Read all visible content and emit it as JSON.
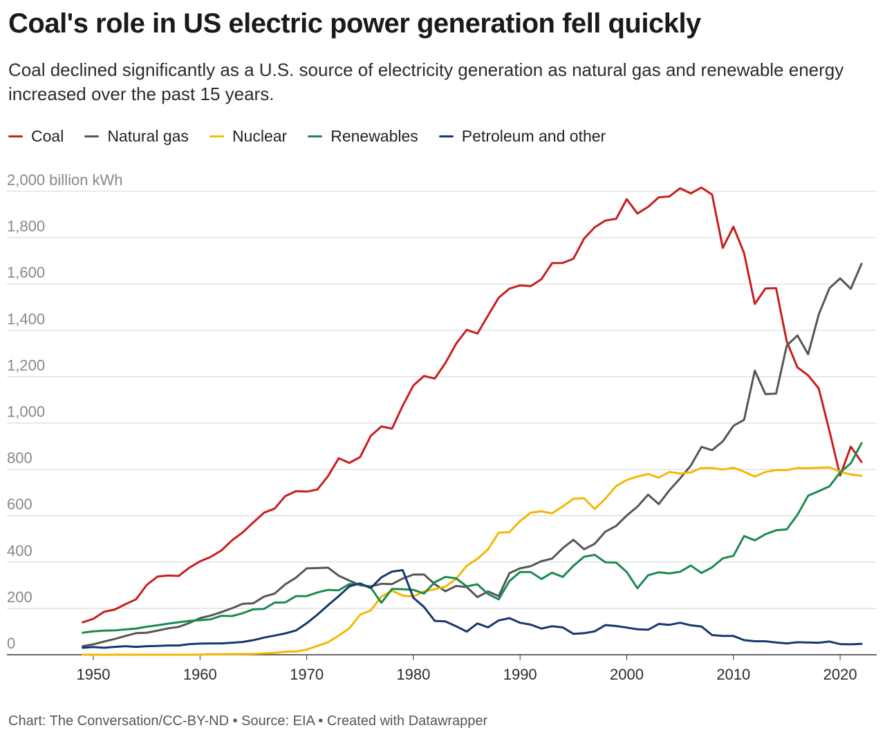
{
  "title": "Coal's role in US electric power generation fell quickly",
  "subtitle": "Coal declined significantly as a U.S. source of electricity generation as natural gas and renewable energy increased over the past 15 years.",
  "footer": "Chart: The Conversation/CC-BY-ND • Source: EIA • Created with Datawrapper",
  "chart_data": {
    "type": "line",
    "title": "Coal's role in US electric power generation fell quickly",
    "ylabel": "2,000 billion kWh",
    "ylim": [
      0,
      2000
    ],
    "y_ticks": [
      0,
      200,
      400,
      600,
      800,
      1000,
      1200,
      1400,
      1600,
      1800,
      2000
    ],
    "y_tick_labels": [
      "0",
      "200",
      "400",
      "600",
      "800",
      "1,000",
      "1,200",
      "1,400",
      "1,600",
      "1,800",
      "2,000 billion kWh"
    ],
    "xlim": [
      1949,
      2022
    ],
    "x_ticks": [
      1950,
      1960,
      1970,
      1980,
      1990,
      2000,
      2010,
      2020
    ],
    "x_tick_labels": [
      "1950",
      "1960",
      "1970",
      "1980",
      "1990",
      "2000",
      "2010",
      "2020"
    ],
    "grid": true,
    "legend_position": "top-left",
    "x": [
      1949,
      1950,
      1951,
      1952,
      1953,
      1954,
      1955,
      1956,
      1957,
      1958,
      1959,
      1960,
      1961,
      1962,
      1963,
      1964,
      1965,
      1966,
      1967,
      1968,
      1969,
      1970,
      1971,
      1972,
      1973,
      1974,
      1975,
      1976,
      1977,
      1978,
      1979,
      1980,
      1981,
      1982,
      1983,
      1984,
      1985,
      1986,
      1987,
      1988,
      1989,
      1990,
      1991,
      1992,
      1993,
      1994,
      1995,
      1996,
      1997,
      1998,
      1999,
      2000,
      2001,
      2002,
      2003,
      2004,
      2005,
      2006,
      2007,
      2008,
      2009,
      2010,
      2011,
      2012,
      2013,
      2014,
      2015,
      2016,
      2017,
      2018,
      2019,
      2020,
      2021,
      2022
    ],
    "series": [
      {
        "name": "Coal",
        "color": "#c71e1d",
        "values": [
          140,
          155,
          185,
          195,
          218,
          239,
          301,
          337,
          342,
          340,
          376,
          403,
          422,
          450,
          494,
          528,
          571,
          613,
          631,
          685,
          706,
          704,
          713,
          771,
          848,
          828,
          853,
          944,
          985,
          976,
          1075,
          1162,
          1203,
          1192,
          1259,
          1342,
          1402,
          1386,
          1464,
          1541,
          1580,
          1594,
          1591,
          1621,
          1690,
          1691,
          1709,
          1796,
          1845,
          1874,
          1881,
          1966,
          1904,
          1933,
          1974,
          1978,
          2013,
          1991,
          2016,
          1986,
          1756,
          1847,
          1733,
          1514,
          1581,
          1582,
          1352,
          1240,
          1206,
          1149,
          965,
          773,
          898,
          832
        ]
      },
      {
        "name": "Natural gas",
        "color": "#555555",
        "values": [
          37,
          45,
          57,
          68,
          81,
          93,
          95,
          104,
          114,
          120,
          137,
          158,
          169,
          184,
          201,
          220,
          222,
          251,
          264,
          304,
          333,
          373,
          374,
          376,
          341,
          320,
          300,
          295,
          306,
          305,
          329,
          346,
          346,
          305,
          274,
          297,
          292,
          249,
          273,
          253,
          352,
          373,
          382,
          404,
          415,
          460,
          496,
          455,
          479,
          531,
          556,
          601,
          639,
          691,
          650,
          710,
          761,
          816,
          897,
          883,
          921,
          988,
          1014,
          1226,
          1125,
          1127,
          1334,
          1378,
          1297,
          1469,
          1582,
          1624,
          1579,
          1687
        ]
      },
      {
        "name": "Nuclear",
        "color": "#f5b700",
        "values": [
          0,
          0,
          0,
          0,
          0,
          0,
          0,
          0,
          0,
          0,
          0,
          1,
          2,
          2,
          3,
          3,
          4,
          6,
          8,
          13,
          14,
          22,
          38,
          54,
          83,
          114,
          173,
          191,
          251,
          276,
          255,
          251,
          273,
          283,
          294,
          328,
          384,
          414,
          455,
          527,
          529,
          577,
          613,
          619,
          610,
          640,
          673,
          675,
          629,
          674,
          728,
          754,
          769,
          780,
          764,
          789,
          782,
          787,
          806,
          806,
          799,
          807,
          790,
          769,
          789,
          797,
          797,
          806,
          805,
          807,
          809,
          790,
          778,
          772
        ]
      },
      {
        "name": "Renewables",
        "color": "#1a8a4f",
        "values": [
          95,
          101,
          104,
          105,
          109,
          113,
          121,
          127,
          134,
          140,
          146,
          149,
          153,
          168,
          167,
          179,
          196,
          198,
          225,
          226,
          253,
          253,
          269,
          280,
          278,
          305,
          304,
          290,
          224,
          284,
          283,
          280,
          264,
          313,
          336,
          330,
          295,
          304,
          262,
          239,
          318,
          357,
          357,
          327,
          354,
          336,
          384,
          423,
          431,
          399,
          398,
          357,
          287,
          343,
          356,
          351,
          358,
          385,
          353,
          377,
          416,
          427,
          512,
          494,
          520,
          537,
          541,
          604,
          686,
          706,
          727,
          787,
          826,
          913
        ]
      },
      {
        "name": "Petroleum and other",
        "color": "#15376e",
        "values": [
          30,
          33,
          30,
          34,
          37,
          34,
          37,
          38,
          40,
          40,
          46,
          48,
          49,
          49,
          52,
          55,
          63,
          74,
          83,
          92,
          105,
          136,
          173,
          214,
          253,
          295,
          308,
          288,
          334,
          359,
          365,
          246,
          206,
          146,
          144,
          123,
          100,
          135,
          118,
          148,
          158,
          138,
          130,
          113,
          123,
          118,
          90,
          93,
          101,
          128,
          124,
          117,
          110,
          108,
          133,
          129,
          138,
          127,
          122,
          85,
          81,
          81,
          63,
          58,
          58,
          53,
          49,
          54,
          53,
          52,
          57,
          46,
          45,
          47
        ]
      }
    ]
  }
}
